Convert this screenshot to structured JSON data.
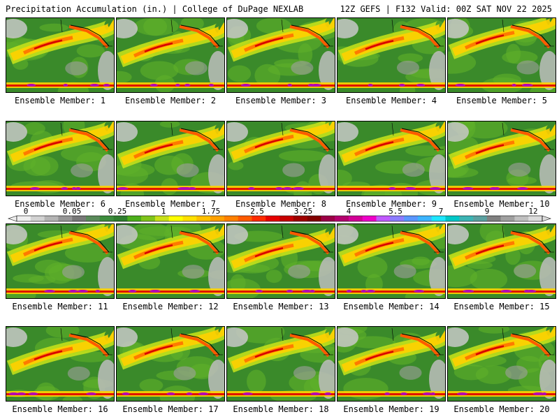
{
  "header": {
    "left_title": "Precipitation Accumulation (in.) | College of DuPage NEXLAB",
    "right_title": "12Z GEFS | F132 Valid: 00Z SAT NOV 22 2025"
  },
  "panels": [
    {
      "member": 1,
      "label": "Ensemble Member: 1"
    },
    {
      "member": 2,
      "label": "Ensemble Member: 2"
    },
    {
      "member": 3,
      "label": "Ensemble Member: 3"
    },
    {
      "member": 4,
      "label": "Ensemble Member: 4"
    },
    {
      "member": 5,
      "label": "Ensemble Member: 5"
    },
    {
      "member": 6,
      "label": "Ensemble Member: 6"
    },
    {
      "member": 7,
      "label": "Ensemble Member: 7"
    },
    {
      "member": 8,
      "label": "Ensemble Member: 8"
    },
    {
      "member": 9,
      "label": "Ensemble Member: 9"
    },
    {
      "member": 10,
      "label": "Ensemble Member: 10"
    },
    {
      "member": 11,
      "label": "Ensemble Member: 11"
    },
    {
      "member": 12,
      "label": "Ensemble Member: 12"
    },
    {
      "member": 13,
      "label": "Ensemble Member: 13"
    },
    {
      "member": 14,
      "label": "Ensemble Member: 14"
    },
    {
      "member": 15,
      "label": "Ensemble Member: 15"
    },
    {
      "member": 16,
      "label": "Ensemble Member: 16"
    },
    {
      "member": 17,
      "label": "Ensemble Member: 17"
    },
    {
      "member": 18,
      "label": "Ensemble Member: 18"
    },
    {
      "member": 19,
      "label": "Ensemble Member: 19"
    },
    {
      "member": 20,
      "label": "Ensemble Member: 20"
    }
  ],
  "legend": {
    "tick_labels": [
      "0",
      "0.05",
      "0.25",
      "1",
      "1.75",
      "2.5",
      "3.25",
      "4",
      "5.5",
      "7",
      "9",
      "12"
    ],
    "colors": [
      "#eeeeee",
      "#d2d2d2",
      "#b4b4b4",
      "#969696",
      "#787878",
      "#5a8a5a",
      "#3c8c3c",
      "#2e7d2e",
      "#4caf1a",
      "#7fc41a",
      "#c8e01a",
      "#ffff00",
      "#ffe000",
      "#ffc000",
      "#ffa000",
      "#ff8000",
      "#ff5a00",
      "#ff2a00",
      "#e60000",
      "#c80000",
      "#a00000",
      "#820000",
      "#9c0046",
      "#b4006e",
      "#d20096",
      "#ee00c8",
      "#c05aff",
      "#8c7cff",
      "#5a96ff",
      "#3cb4ff",
      "#1ee6ff",
      "#00c8c8",
      "#3cb4b4",
      "#5aa0a0",
      "#808080",
      "#a0a0a0",
      "#c0c0c0",
      "#dcdcdc"
    ]
  }
}
